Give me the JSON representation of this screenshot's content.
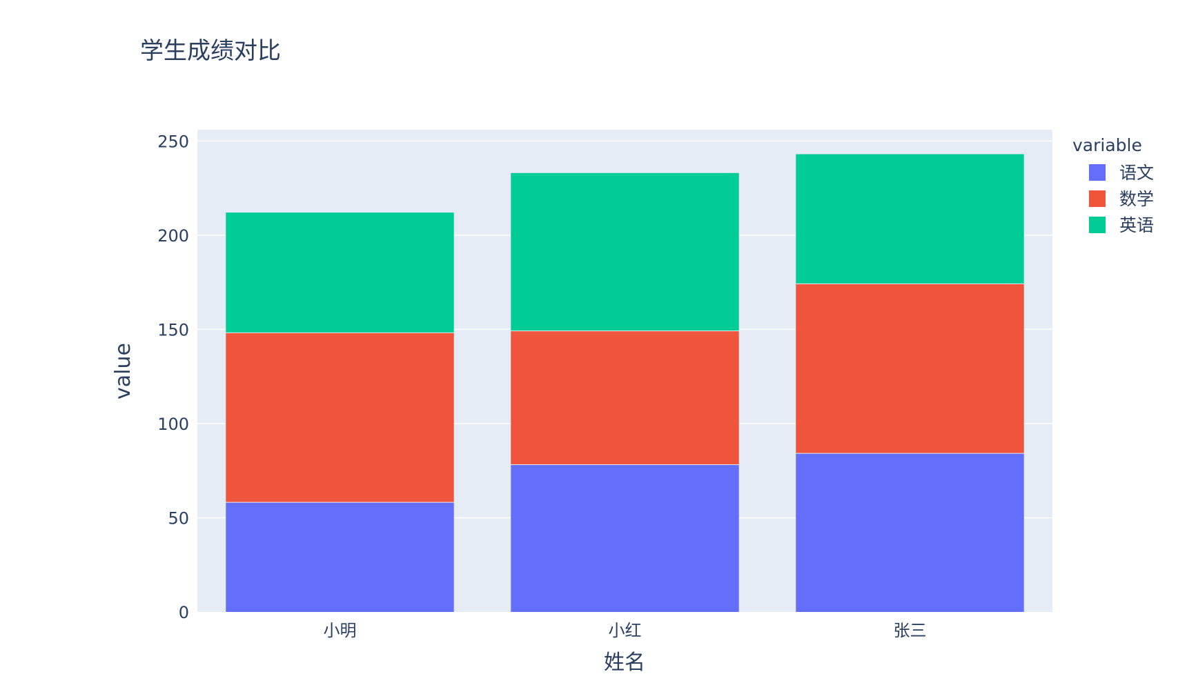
{
  "chart_data": {
    "type": "bar",
    "barmode": "stack",
    "title": "学生成绩对比",
    "xlabel": "姓名",
    "ylabel": "value",
    "categories": [
      "小明",
      "小红",
      "张三"
    ],
    "series": [
      {
        "name": "语文",
        "values": [
          58,
          78,
          84
        ],
        "color": "#636efa"
      },
      {
        "name": "数学",
        "values": [
          90,
          71,
          90
        ],
        "color": "#ef553b"
      },
      {
        "name": "英语",
        "values": [
          64,
          84,
          69
        ],
        "color": "#00cc96"
      }
    ],
    "ylim": [
      0,
      256
    ],
    "yticks": [
      0,
      50,
      100,
      150,
      200,
      250
    ],
    "grid": true,
    "legend": {
      "title": "variable",
      "placement": "right"
    },
    "colors": {
      "plot_bg": "#e5ecf6",
      "grid": "#ffffff",
      "text": "#2a3f5f"
    }
  }
}
